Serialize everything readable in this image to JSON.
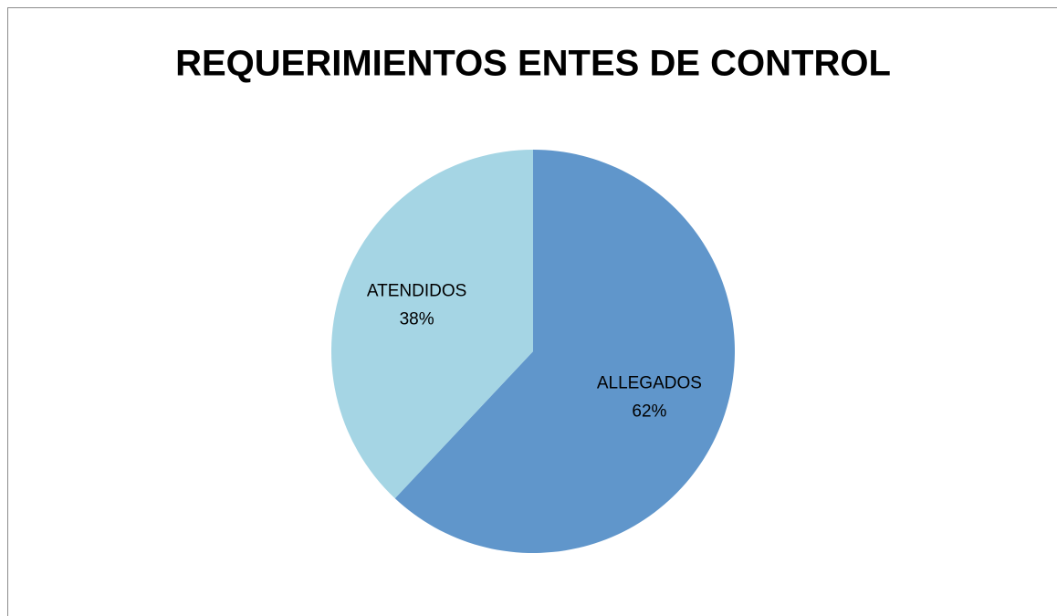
{
  "chart_data": {
    "type": "pie",
    "title": "REQUERIMIENTOS ENTES DE CONTROL",
    "categories": [
      "ALLEGADOS",
      "ATENDIDOS"
    ],
    "values": [
      62,
      38
    ],
    "value_labels": [
      "62%",
      "38%"
    ],
    "colors": [
      "#6096cb",
      "#a5d5e4"
    ]
  }
}
